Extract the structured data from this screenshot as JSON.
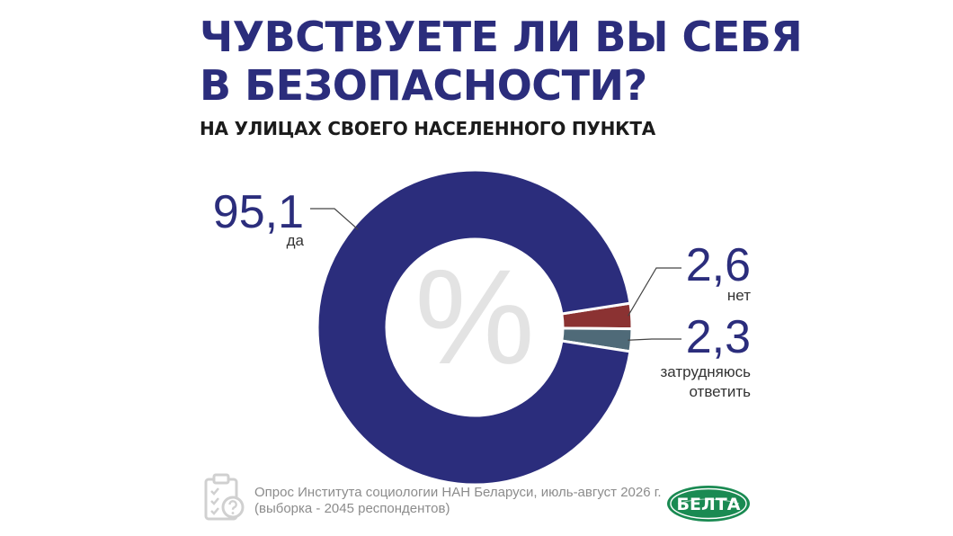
{
  "title_line1": "ЧУВСТВУЕТЕ ЛИ ВЫ СЕБЯ",
  "title_line2": "В БЕЗОПАСНОСТИ?",
  "subtitle": "НА УЛИЦАХ СВОЕГО НАСЕЛЕННОГО ПУНКТА",
  "chart_data": {
    "type": "pie",
    "donut": true,
    "unit": "%",
    "center_symbol": "%",
    "slices": [
      {
        "label": "да",
        "value": 95.1,
        "display": "95,1",
        "color": "#2b2d7c"
      },
      {
        "label": "нет",
        "value": 2.6,
        "display": "2,6",
        "color": "#8b3232"
      },
      {
        "label": "затрудняюсь ответить",
        "label_lines": [
          "затрудняюсь",
          "ответить"
        ],
        "value": 2.3,
        "display": "2,3",
        "color": "#4f6a78"
      }
    ]
  },
  "footer": {
    "source_line1": "Опрос Института социологии НАН Беларуси, июль-август 2026 г.",
    "source_line2": "(выборка - 2045 респондентов)",
    "icon": "clipboard-question-icon"
  },
  "logo_text": "БЕЛТА",
  "colors": {
    "accent": "#2b2d7c",
    "no": "#8b3232",
    "unsure": "#4f6a78",
    "logo_green": "#1a8a52"
  }
}
